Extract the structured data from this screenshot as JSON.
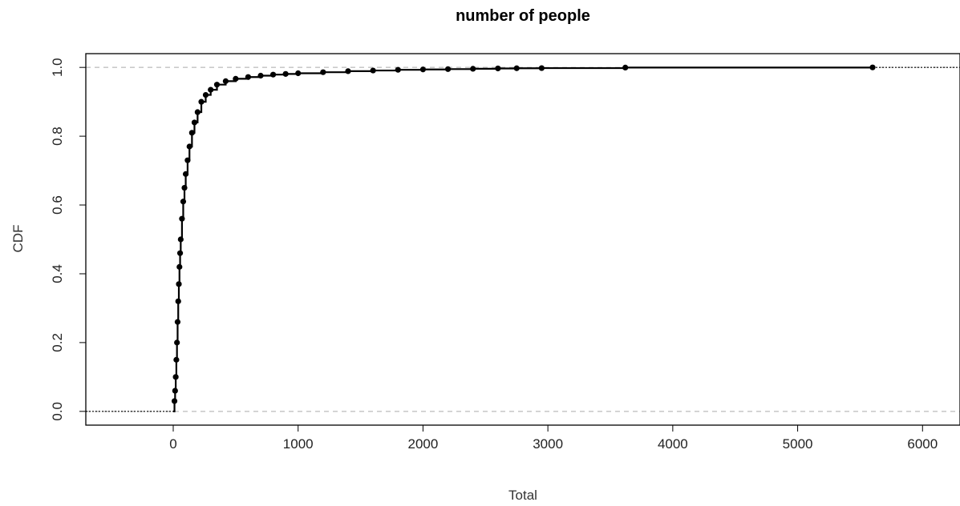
{
  "chart_data": {
    "type": "scatter",
    "title": "number of people",
    "xlabel": "Total",
    "ylabel": "CDF",
    "xlim": [
      -700,
      6300
    ],
    "ylim": [
      -0.04,
      1.04
    ],
    "xticks": [
      0,
      1000,
      2000,
      3000,
      4000,
      5000,
      6000
    ],
    "yticks": [
      0.0,
      0.2,
      0.4,
      0.6,
      0.8,
      1.0
    ],
    "xtick_labels": [
      "0",
      "1000",
      "2000",
      "3000",
      "4000",
      "5000",
      "6000"
    ],
    "ytick_labels": [
      "0.0",
      "0.2",
      "0.4",
      "0.6",
      "0.8",
      "1.0"
    ],
    "reference_lines": [
      0,
      1
    ],
    "grid": false,
    "step_points": [
      [
        0,
        0.0
      ],
      [
        10,
        0.03
      ],
      [
        15,
        0.06
      ],
      [
        20,
        0.1
      ],
      [
        25,
        0.15
      ],
      [
        30,
        0.2
      ],
      [
        35,
        0.26
      ],
      [
        40,
        0.32
      ],
      [
        45,
        0.37
      ],
      [
        50,
        0.42
      ],
      [
        55,
        0.46
      ],
      [
        60,
        0.5
      ],
      [
        70,
        0.56
      ],
      [
        80,
        0.61
      ],
      [
        90,
        0.65
      ],
      [
        100,
        0.69
      ],
      [
        115,
        0.73
      ],
      [
        130,
        0.77
      ],
      [
        150,
        0.81
      ],
      [
        170,
        0.84
      ],
      [
        195,
        0.87
      ],
      [
        225,
        0.9
      ],
      [
        260,
        0.92
      ],
      [
        300,
        0.935
      ],
      [
        350,
        0.95
      ],
      [
        420,
        0.96
      ],
      [
        500,
        0.967
      ],
      [
        600,
        0.972
      ],
      [
        700,
        0.976
      ],
      [
        800,
        0.979
      ],
      [
        900,
        0.981
      ],
      [
        1000,
        0.983
      ],
      [
        1200,
        0.986
      ],
      [
        1400,
        0.989
      ],
      [
        1600,
        0.991
      ],
      [
        1800,
        0.993
      ],
      [
        2000,
        0.994
      ],
      [
        2200,
        0.995
      ],
      [
        2400,
        0.996
      ],
      [
        2600,
        0.997
      ],
      [
        2750,
        0.9975
      ],
      [
        2950,
        0.998
      ],
      [
        3620,
        0.9995
      ],
      [
        5600,
        1.0
      ]
    ]
  }
}
